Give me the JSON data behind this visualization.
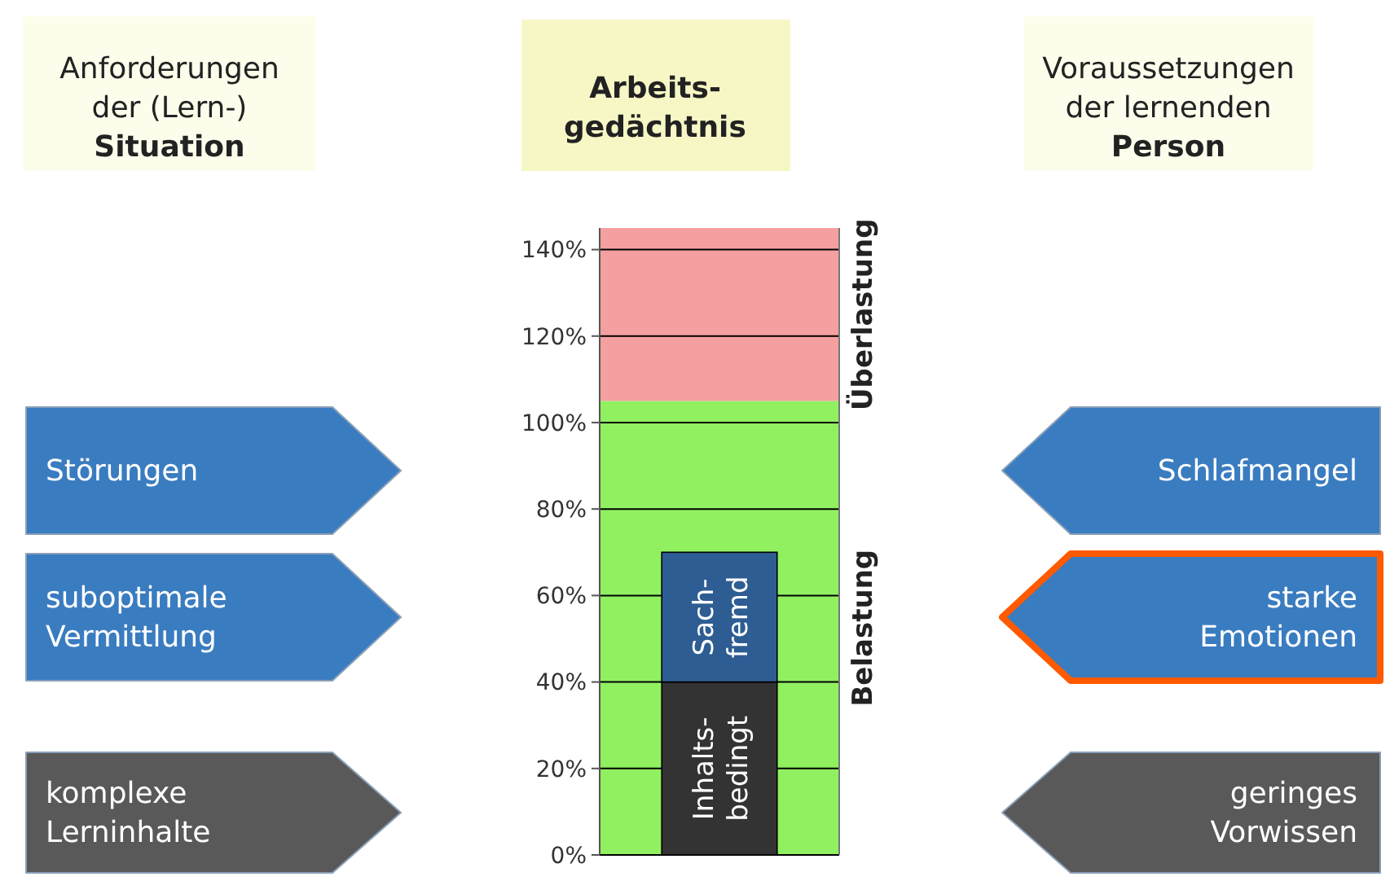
{
  "chart_data": {
    "type": "bar",
    "title": "Arbeits-\ngedächtnis",
    "categories": [
      null
    ],
    "stacked": true,
    "grid": "y",
    "series": [
      {
        "name": "Inhalts-\nbedingt",
        "color": "#333333",
        "values": [
          40
        ]
      },
      {
        "name": "Sach-\nfremd",
        "color": "#2e5d93",
        "values": [
          30
        ]
      }
    ],
    "ylim": [
      0,
      145
    ],
    "yticks": [
      {
        "value": 0,
        "label": "0%"
      },
      {
        "value": 20,
        "label": "20%"
      },
      {
        "value": 40,
        "label": "40%"
      },
      {
        "value": 60,
        "label": "60%"
      },
      {
        "value": 80,
        "label": "80%"
      },
      {
        "value": 100,
        "label": "100%"
      },
      {
        "value": 120,
        "label": "120%"
      },
      {
        "value": 140,
        "label": "140%"
      }
    ],
    "bands": [
      {
        "axis": "y",
        "from": 0,
        "to": 105,
        "label": "Belastung",
        "color": "#90f060"
      },
      {
        "axis": "y",
        "from": 105,
        "to": 145,
        "label": "Überlastung",
        "color": "#f5a0a0"
      }
    ],
    "annotations": [
      "Anforderungen\nder (Lern-)\n**Situation**",
      "Voraussetzungen\nder lernenden\n**Person**",
      "Störungen",
      "suboptimale\nVermittlung",
      "komplexe\nLerninhalte",
      "Schlafmangel",
      "starke\nEmotionen",
      "geringes\nVorwissen"
    ]
  }
}
